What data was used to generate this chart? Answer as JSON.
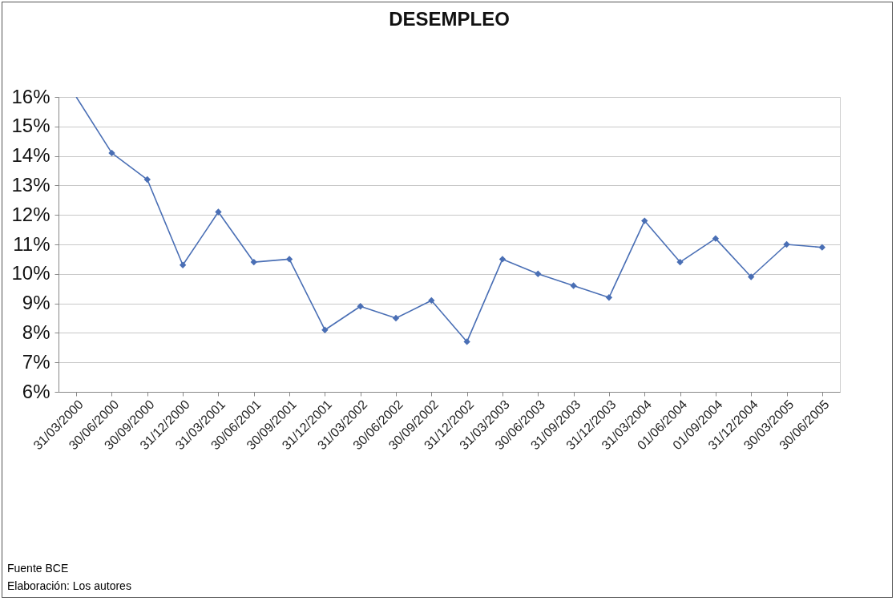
{
  "chart_data": {
    "type": "line",
    "title": "DESEMPLEO",
    "categories": [
      "31/03/2000",
      "30/06/2000",
      "30/09/2000",
      "31/12/2000",
      "31/03/2001",
      "30/06/2001",
      "30/09/2001",
      "31/12/2001",
      "31/03/2002",
      "30/06/2002",
      "30/09/2002",
      "31/12/2002",
      "31/03/2003",
      "30/06/2003",
      "31/09/2003",
      "31/12/2003",
      "31/03/2004",
      "01/06/2004",
      "01/09/2004",
      "31/12/2004",
      "30/03/2005",
      "30/06/2005"
    ],
    "series": [
      {
        "color": "#4a6fb5",
        "values": [
          16,
          14.1,
          13.2,
          10.3,
          12.1,
          10.4,
          10.5,
          8.1,
          8.9,
          8.5,
          9.1,
          7.7,
          10.5,
          10.0,
          9.6,
          9.2,
          11.8,
          10.4,
          11.2,
          9.9,
          11.0,
          10.9
        ]
      }
    ],
    "ylim": [
      6,
      16
    ],
    "yticks": [
      {
        "value": 6,
        "label": "6%"
      },
      {
        "value": 7,
        "label": "7%"
      },
      {
        "value": 8,
        "label": "8%"
      },
      {
        "value": 9,
        "label": "9%"
      },
      {
        "value": 10,
        "label": "10%"
      },
      {
        "value": 11,
        "label": "11%"
      },
      {
        "value": 12,
        "label": "12%"
      },
      {
        "value": 13,
        "label": "13%"
      },
      {
        "value": 14,
        "label": "14%"
      },
      {
        "value": 15,
        "label": "15%"
      },
      {
        "value": 16,
        "label": "16%"
      }
    ],
    "grid": "y",
    "marker": "diamond",
    "line_style": "solid",
    "annotations": [
      "Fuente BCE",
      "Elaboración: Los autores"
    ]
  }
}
